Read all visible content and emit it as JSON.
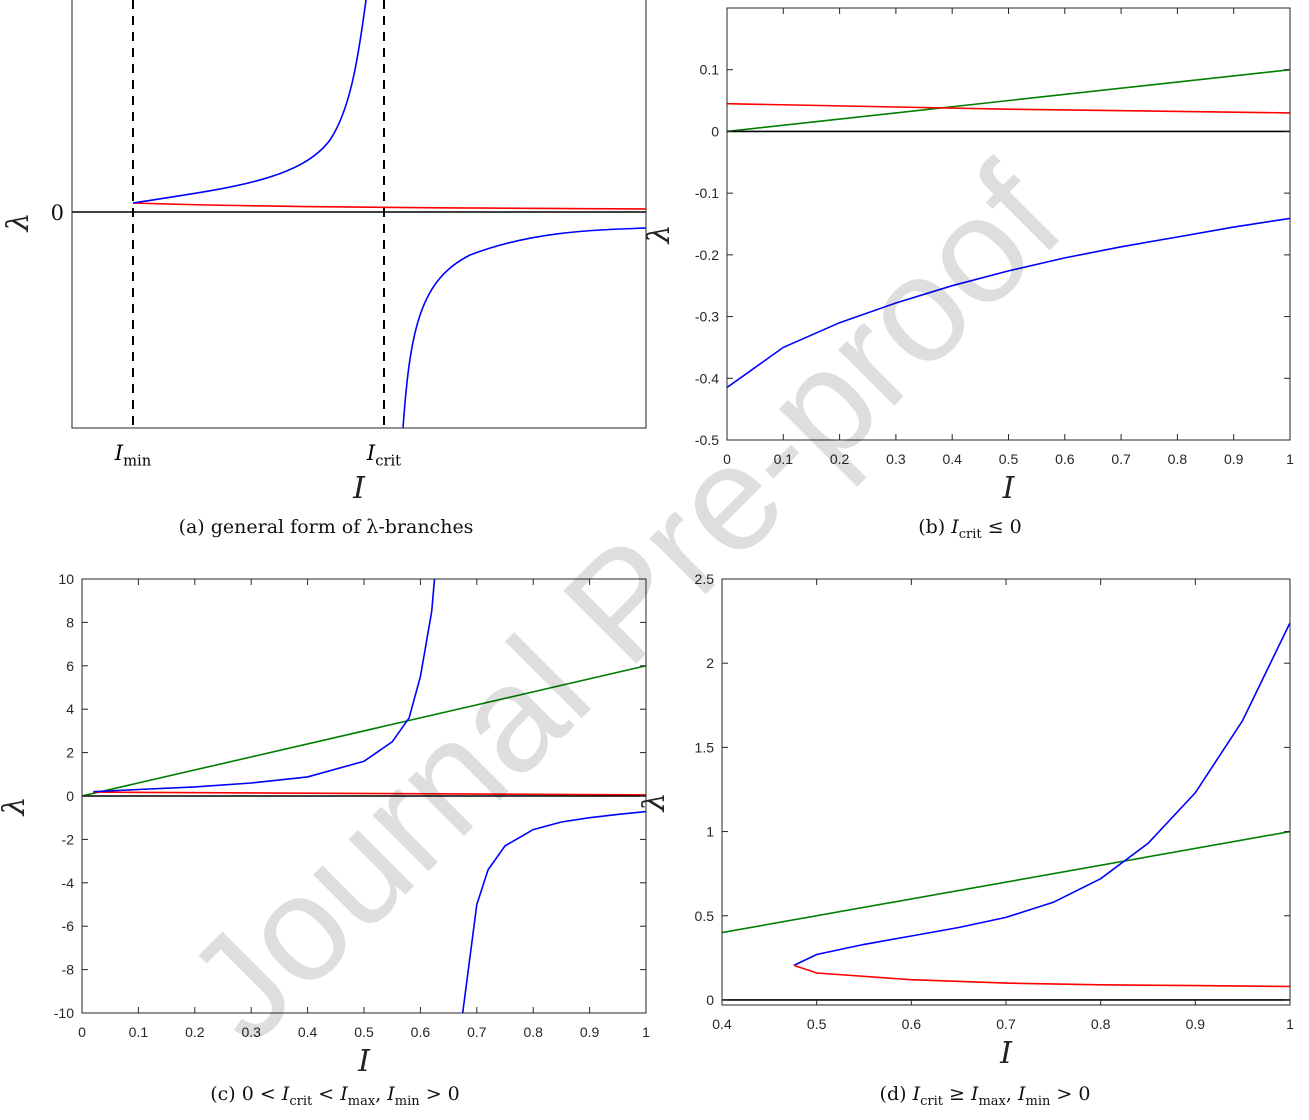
{
  "chart_data": [
    {
      "panel": "a",
      "type": "line",
      "caption": "(a) general form of λ-branches",
      "xlabel": "I",
      "ylabel": "λ",
      "xticks": [
        "I_min",
        "I_crit"
      ],
      "yticks": [
        "0"
      ],
      "markers": {
        "xmin_label": "I",
        "xmin_sub": "min",
        "xcrit_label": "I",
        "xcrit_sub": "crit",
        "zero_label": "0"
      },
      "colors": {
        "blue": "#0000ff",
        "red": "#ff0000",
        "black": "#000000"
      },
      "grid": false
    },
    {
      "panel": "b",
      "type": "line",
      "caption_pre": "(b) ",
      "caption_math": "I",
      "caption_sub": "crit",
      "caption_post": " ≤ 0",
      "xlabel": "I",
      "ylabel": "λ",
      "xlim": [
        0,
        1
      ],
      "ylim": [
        -0.5,
        0.2
      ],
      "xticks": [
        "0",
        "0.1",
        "0.2",
        "0.3",
        "0.4",
        "0.5",
        "0.6",
        "0.7",
        "0.8",
        "0.9",
        "1"
      ],
      "yticks": [
        "-0.5",
        "-0.4",
        "-0.3",
        "-0.2",
        "-0.1",
        "0",
        "0.1"
      ],
      "series": [
        {
          "color": "#008000",
          "x": [
            0,
            1
          ],
          "y": [
            0,
            0.1
          ]
        },
        {
          "color": "#ff0000",
          "x": [
            0,
            0.5,
            1
          ],
          "y": [
            0.045,
            0.036,
            0.03
          ]
        },
        {
          "color": "#000000",
          "x": [
            0,
            1
          ],
          "y": [
            0,
            0
          ]
        },
        {
          "color": "#0000ff",
          "x": [
            0,
            0.1,
            0.2,
            0.3,
            0.4,
            0.5,
            0.6,
            0.7,
            0.8,
            0.9,
            1.0
          ],
          "y": [
            -0.415,
            -0.35,
            -0.31,
            -0.278,
            -0.25,
            -0.226,
            -0.205,
            -0.187,
            -0.171,
            -0.155,
            -0.141
          ]
        }
      ],
      "grid": false
    },
    {
      "panel": "c",
      "type": "line",
      "caption_pre": "(c) 0 < ",
      "caption_math": "I",
      "caption_sub": "crit",
      "caption_mid": " < ",
      "caption_math2": "I",
      "caption_sub2": "max",
      "caption_mid2": ", ",
      "caption_math3": "I",
      "caption_sub3": "min",
      "caption_post": " > 0",
      "xlabel": "I",
      "ylabel": "λ",
      "xlim": [
        0,
        1
      ],
      "ylim": [
        -10,
        10
      ],
      "xticks": [
        "0",
        "0.1",
        "0.2",
        "0.3",
        "0.4",
        "0.5",
        "0.6",
        "0.7",
        "0.8",
        "0.9",
        "1"
      ],
      "yticks": [
        "-10",
        "-8",
        "-6",
        "-4",
        "-2",
        "0",
        "2",
        "4",
        "6",
        "8",
        "10"
      ],
      "series": [
        {
          "color": "#008000",
          "x": [
            0,
            1
          ],
          "y": [
            0,
            6
          ]
        },
        {
          "color": "#ff0000",
          "x": [
            0.02,
            1
          ],
          "y": [
            0.18,
            0.05
          ]
        },
        {
          "color": "#000000",
          "x": [
            0,
            1
          ],
          "y": [
            0,
            0
          ]
        },
        {
          "color": "#0000ff",
          "x": [
            0.02,
            0.1,
            0.2,
            0.3,
            0.4,
            0.5,
            0.55,
            0.58,
            0.6,
            0.62,
            0.625
          ],
          "y": [
            0.2,
            0.3,
            0.42,
            0.6,
            0.88,
            1.6,
            2.5,
            3.6,
            5.5,
            8.5,
            10
          ]
        },
        {
          "color": "#0000ff",
          "x": [
            0.675,
            0.7,
            0.72,
            0.75,
            0.8,
            0.85,
            0.9,
            0.95,
            1.0
          ],
          "y": [
            -10,
            -5.0,
            -3.4,
            -2.3,
            -1.55,
            -1.2,
            -1.0,
            -0.85,
            -0.72
          ]
        }
      ],
      "grid": false
    },
    {
      "panel": "d",
      "type": "line",
      "caption_pre": "(d) ",
      "caption_math": "I",
      "caption_sub": "crit",
      "caption_mid": " ≥ ",
      "caption_math2": "I",
      "caption_sub2": "max",
      "caption_mid2": ", ",
      "caption_math3": "I",
      "caption_sub3": "min",
      "caption_post": " > 0",
      "xlabel": "I",
      "ylabel": "λ",
      "xlim": [
        0.4,
        1
      ],
      "ylim": [
        -0.03,
        2.5
      ],
      "xticks": [
        "0.4",
        "0.5",
        "0.6",
        "0.7",
        "0.8",
        "0.9",
        "1"
      ],
      "yticks": [
        "0",
        "0.5",
        "1",
        "1.5",
        "2",
        "2.5"
      ],
      "series": [
        {
          "color": "#008000",
          "x": [
            0.4,
            1
          ],
          "y": [
            0.4,
            1.0
          ]
        },
        {
          "color": "#000000",
          "x": [
            0.4,
            1
          ],
          "y": [
            0,
            0
          ]
        },
        {
          "color": "#0000ff",
          "x": [
            0.476,
            0.5,
            0.55,
            0.6,
            0.65,
            0.7,
            0.75,
            0.8,
            0.85,
            0.9,
            0.95,
            1.0
          ],
          "y": [
            0.205,
            0.27,
            0.33,
            0.38,
            0.43,
            0.49,
            0.58,
            0.72,
            0.93,
            1.23,
            1.66,
            2.24
          ]
        },
        {
          "color": "#ff0000",
          "x": [
            0.476,
            0.5,
            0.6,
            0.7,
            0.8,
            0.9,
            1.0
          ],
          "y": [
            0.205,
            0.16,
            0.12,
            0.1,
            0.09,
            0.085,
            0.08
          ]
        }
      ],
      "grid": false
    }
  ],
  "watermark": "Journal Pre-proof"
}
